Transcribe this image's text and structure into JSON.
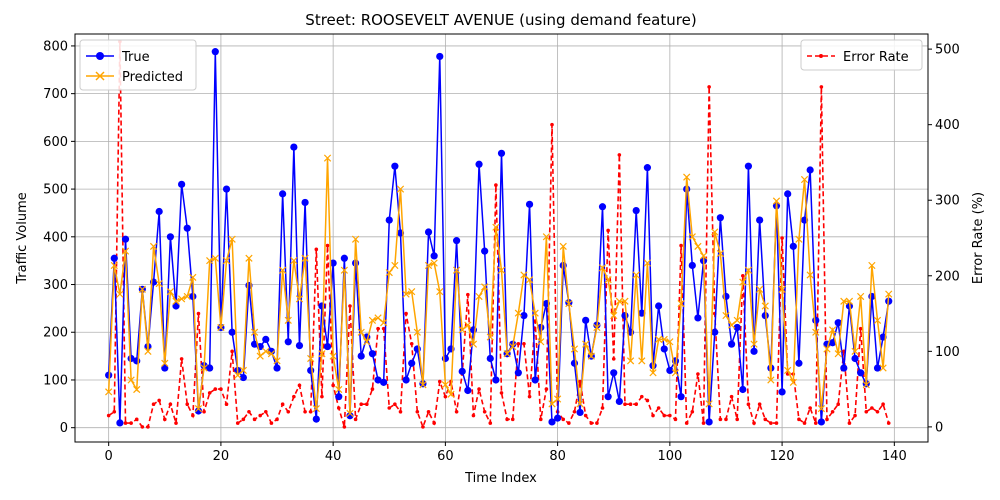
{
  "chart_data": {
    "type": "line",
    "title": "Street: ROOSEVELT AVENUE (using demand feature)",
    "xlabel": "Time Index",
    "ylabel": "Traffic Volume",
    "ylabel_right": "Error Rate (%)",
    "xlim": [
      -6,
      146
    ],
    "ylim": [
      -30,
      825
    ],
    "ylim_right": [
      -20,
      520
    ],
    "xticks": [
      0,
      20,
      40,
      60,
      80,
      100,
      120,
      140
    ],
    "yticks": [
      0,
      100,
      200,
      300,
      400,
      500,
      600,
      700,
      800
    ],
    "yticks_right": [
      0,
      100,
      200,
      300,
      400,
      500
    ],
    "grid": true,
    "legend_left": "top-left",
    "legend_right": "top-right",
    "colors": {
      "true": "#0000ff",
      "predicted": "#ffa500",
      "error": "#ff0000"
    },
    "series": [
      {
        "name": "True",
        "values": [
          110,
          355,
          10,
          395,
          145,
          140,
          290,
          170,
          305,
          453,
          125,
          400,
          255,
          510,
          418,
          275,
          35,
          130,
          125,
          788,
          210,
          500,
          200,
          120,
          105,
          298,
          175,
          170,
          185,
          160,
          125,
          490,
          180,
          588,
          172,
          472,
          120,
          18,
          255,
          170,
          345,
          65,
          355,
          25,
          345,
          150,
          190,
          155,
          100,
          95,
          435,
          548,
          408,
          100,
          135,
          165,
          92,
          410,
          360,
          778,
          145,
          165,
          392,
          118,
          78,
          205,
          552,
          370,
          145,
          100,
          575,
          155,
          175,
          115,
          235,
          468,
          100,
          210,
          260,
          12,
          20,
          340,
          262,
          135,
          32,
          225,
          150,
          215,
          463,
          65,
          115,
          55,
          235,
          200,
          455,
          240,
          545,
          130,
          255,
          165,
          120,
          140,
          65,
          500,
          340,
          230,
          350,
          12,
          200,
          440,
          275,
          175,
          210,
          80,
          548,
          160,
          435,
          235,
          125,
          465,
          75,
          490,
          380,
          135,
          435,
          540,
          225,
          12,
          175,
          178,
          220,
          125,
          255,
          145,
          115,
          92,
          275,
          125,
          190,
          265
        ]
      },
      {
        "name": "Predicted",
        "values": [
          75,
          340,
          280,
          370,
          100,
          80,
          290,
          160,
          380,
          302,
          135,
          285,
          265,
          270,
          275,
          315,
          40,
          125,
          350,
          355,
          210,
          350,
          395,
          110,
          120,
          355,
          200,
          150,
          160,
          155,
          140,
          330,
          225,
          350,
          270,
          355,
          145,
          40,
          155,
          565,
          150,
          80,
          330,
          30,
          395,
          200,
          180,
          225,
          230,
          220,
          325,
          340,
          500,
          280,
          285,
          200,
          90,
          340,
          345,
          285,
          90,
          70,
          330,
          205,
          215,
          175,
          275,
          295,
          190,
          420,
          330,
          155,
          170,
          240,
          320,
          310,
          240,
          180,
          400,
          50,
          60,
          380,
          260,
          165,
          50,
          175,
          150,
          210,
          335,
          310,
          235,
          265,
          265,
          140,
          320,
          140,
          345,
          115,
          185,
          185,
          180,
          115,
          260,
          525,
          400,
          380,
          360,
          50,
          410,
          365,
          235,
          215,
          225,
          305,
          330,
          175,
          290,
          255,
          100,
          475,
          290,
          120,
          95,
          395,
          520,
          320,
          200,
          40,
          165,
          205,
          155,
          265,
          265,
          160,
          275,
          90,
          340,
          225,
          125,
          280
        ]
      },
      {
        "name": "Error Rate",
        "axis": "right",
        "values": [
          15,
          20,
          510,
          5,
          5,
          10,
          0,
          0,
          30,
          35,
          10,
          30,
          5,
          90,
          30,
          15,
          150,
          20,
          45,
          50,
          50,
          30,
          100,
          5,
          10,
          20,
          10,
          15,
          20,
          5,
          10,
          30,
          20,
          40,
          55,
          20,
          20,
          235,
          40,
          240,
          55,
          25,
          0,
          160,
          10,
          30,
          30,
          50,
          130,
          130,
          25,
          30,
          20,
          150,
          110,
          20,
          0,
          20,
          5,
          60,
          40,
          60,
          20,
          70,
          175,
          15,
          50,
          20,
          5,
          320,
          45,
          10,
          10,
          110,
          110,
          40,
          140,
          10,
          50,
          400,
          20,
          10,
          5,
          20,
          60,
          15,
          5,
          5,
          25,
          260,
          90,
          360,
          30,
          30,
          30,
          40,
          35,
          15,
          25,
          15,
          15,
          10,
          240,
          5,
          20,
          70,
          5,
          450,
          150,
          10,
          10,
          40,
          10,
          200,
          30,
          5,
          30,
          10,
          5,
          5,
          250,
          70,
          70,
          10,
          5,
          25,
          5,
          450,
          10,
          20,
          30,
          100,
          5,
          15,
          130,
          20,
          25,
          20,
          30,
          5
        ]
      }
    ]
  }
}
